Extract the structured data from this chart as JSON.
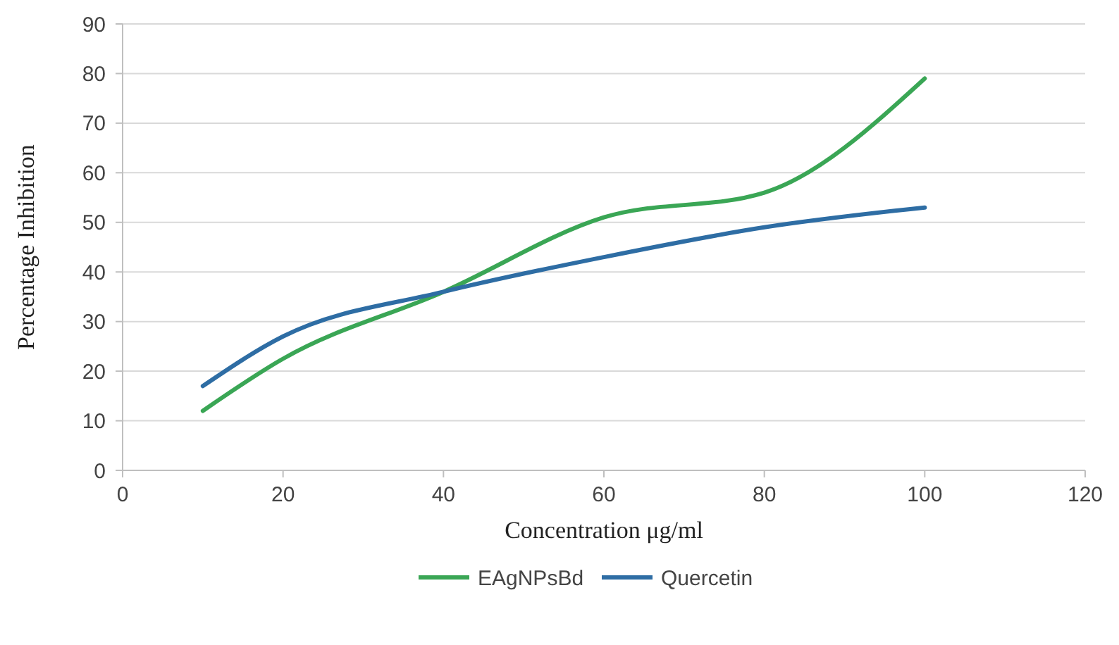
{
  "chart_data": {
    "type": "line",
    "xlabel": "Concentration μg/ml",
    "ylabel": "Percentage Inhibition",
    "x": [
      10,
      20,
      40,
      60,
      80,
      100
    ],
    "series": [
      {
        "name": "EAgNPsBd",
        "color": "#3aa655",
        "values": [
          12,
          22.5,
          36,
          51,
          56,
          79
        ]
      },
      {
        "name": "Quercetin",
        "color": "#2e6da4",
        "values": [
          17,
          27,
          36,
          43,
          49,
          53
        ]
      }
    ],
    "xlim": [
      0,
      120
    ],
    "xticks": [
      0,
      20,
      40,
      60,
      80,
      100,
      120
    ],
    "ylim": [
      0,
      90
    ],
    "yticks": [
      0,
      10,
      20,
      30,
      40,
      50,
      60,
      70,
      80,
      90
    ],
    "grid": "y",
    "legend": "bottom",
    "marker": "none",
    "line_style": "solid"
  }
}
